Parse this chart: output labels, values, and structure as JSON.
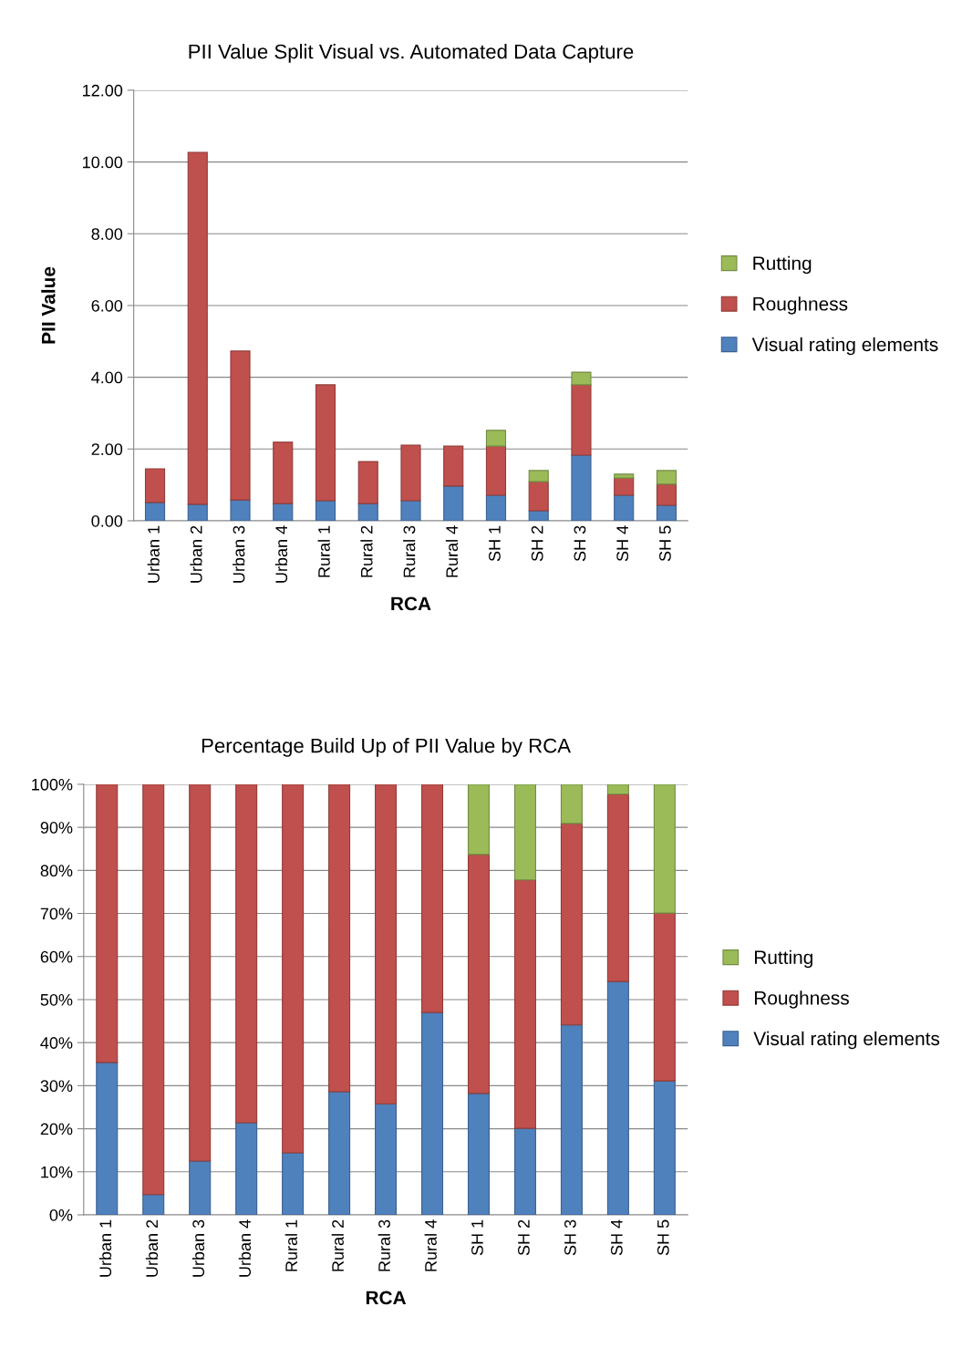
{
  "chart_data": [
    {
      "type": "bar",
      "stacked": true,
      "title": "PII Value Split Visual vs. Automated Data Capture",
      "xlabel": "RCA",
      "ylabel": "PII Value",
      "categories": [
        "Urban 1",
        "Urban 2",
        "Urban 3",
        "Urban 4",
        "Rural 1",
        "Rural 2",
        "Rural 3",
        "Rural 4",
        "SH 1",
        "SH 2",
        "SH 3",
        "SH 4",
        "SH 5"
      ],
      "series": [
        {
          "name": "Visual rating elements",
          "color": "#4f81bd",
          "values": [
            0.51,
            0.46,
            0.58,
            0.48,
            0.56,
            0.48,
            0.56,
            0.97,
            0.71,
            0.28,
            1.83,
            0.71,
            0.43
          ]
        },
        {
          "name": "Roughness",
          "color": "#c0504d",
          "values": [
            0.94,
            9.81,
            4.15,
            1.71,
            3.23,
            1.17,
            1.55,
            1.11,
            1.37,
            0.81,
            1.96,
            0.48,
            0.59
          ]
        },
        {
          "name": "Rutting",
          "color": "#9bbb59",
          "values": [
            null,
            null,
            null,
            null,
            null,
            null,
            null,
            null,
            0.44,
            0.31,
            0.35,
            0.11,
            0.38
          ]
        }
      ],
      "ylim": [
        0,
        12
      ],
      "yticks": [
        {
          "value": 0,
          "label": "0.00"
        },
        {
          "value": 2,
          "label": "2.00"
        },
        {
          "value": 4,
          "label": "4.00"
        },
        {
          "value": 6,
          "label": "6.00"
        },
        {
          "value": 8,
          "label": "8.00"
        },
        {
          "value": 10,
          "label": "10.00"
        },
        {
          "value": 12,
          "label": "12.00"
        }
      ],
      "grid": "y",
      "legend": "right"
    },
    {
      "type": "bar",
      "stacked": true,
      "title": "Percentage Build Up of PII Value by RCA",
      "xlabel": "RCA",
      "categories": [
        "Urban 1",
        "Urban 2",
        "Urban 3",
        "Urban 4",
        "Rural 1",
        "Rural 2",
        "Rural 3",
        "Rural 4",
        "SH 1",
        "SH 2",
        "SH 3",
        "SH 4",
        "SH 5"
      ],
      "series": [
        {
          "name": "Visual rating elements",
          "color": "#4f81bd",
          "values": [
            35.4,
            4.7,
            12.5,
            21.4,
            14.4,
            28.6,
            25.8,
            47.0,
            28.2,
            20.1,
            44.1,
            54.2,
            31.1
          ]
        },
        {
          "name": "Roughness",
          "color": "#c0504d",
          "values": [
            64.6,
            95.3,
            87.5,
            78.6,
            85.6,
            71.4,
            74.2,
            53.0,
            55.5,
            57.7,
            46.8,
            43.5,
            39.0
          ]
        },
        {
          "name": "Rutting",
          "color": "#9bbb59",
          "values": [
            null,
            null,
            null,
            null,
            null,
            null,
            null,
            null,
            16.3,
            22.2,
            9.1,
            2.3,
            29.9
          ]
        }
      ],
      "ylim": [
        0,
        100
      ],
      "yticks": [
        {
          "value": 0,
          "label": "0%"
        },
        {
          "value": 10,
          "label": "10%"
        },
        {
          "value": 20,
          "label": "20%"
        },
        {
          "value": 30,
          "label": "30%"
        },
        {
          "value": 40,
          "label": "40%"
        },
        {
          "value": 50,
          "label": "50%"
        },
        {
          "value": 60,
          "label": "60%"
        },
        {
          "value": 70,
          "label": "70%"
        },
        {
          "value": 80,
          "label": "80%"
        },
        {
          "value": 90,
          "label": "90%"
        },
        {
          "value": 100,
          "label": "100%"
        }
      ],
      "grid": "y",
      "legend": "right"
    }
  ]
}
